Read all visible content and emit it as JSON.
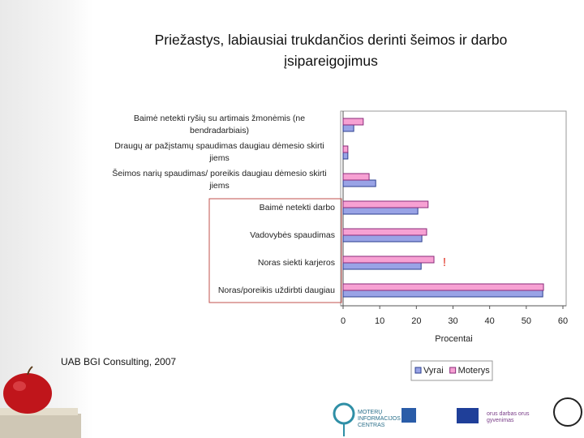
{
  "chart_data": {
    "type": "bar",
    "orientation": "horizontal",
    "title": "Priežastys, labiausiai trukdančios derinti šeimos ir darbo įsipareigojimus",
    "categories": [
      "Baimė netekti ryšių su artimais žmonėmis (ne bendradarbiais)",
      "Draugų ar pažįstamų spaudimas daugiau dėmesio skirti jiems",
      "Šeimos narių spaudimas/ poreikis daugiau dėmesio skirti jiems",
      "Baimė netekti darbo",
      "Vadovybės spaudimas",
      "Noras siekti karjeros",
      "Noras/poreikis uždirbti daugiau"
    ],
    "series": [
      {
        "name": "Vyrai",
        "color": "#99a3e6",
        "values": [
          2.9,
          1.3,
          8.9,
          20.4,
          21.5,
          21.3,
          54.5
        ]
      },
      {
        "name": "Moterys",
        "color": "#f7a1d3",
        "values": [
          5.5,
          1.3,
          7.1,
          23.2,
          22.8,
          24.8,
          54.7
        ]
      }
    ],
    "xlim": [
      0,
      60
    ],
    "xticks": [
      0,
      10,
      20,
      30,
      40,
      50,
      60
    ],
    "xlabel": "Procentai",
    "annotation": "!",
    "legend": "bottom"
  },
  "footer": "UAB BGI Consulting, 2007",
  "logos": [
    "MOTERŲ INFORMACIJOS CENTRAS",
    "orus darbas orus gyvenimas"
  ]
}
